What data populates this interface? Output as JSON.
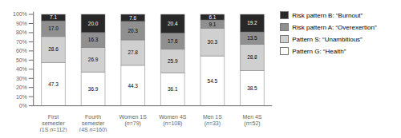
{
  "chart_data": {
    "type": "bar",
    "stacked": true,
    "data_labels": true,
    "grid": false,
    "legend": "right",
    "categories": [
      "First\nsemester\n(1S n=112)",
      "Fourth\nsemester\n(4S n=160)",
      "Women 1S\n(n=79)",
      "Women 4S\n(n=108)",
      "Men 1S\n(n=33)",
      "Men 4S\n(n=52)"
    ],
    "series": [
      {
        "name": "Pattern G: “Health”",
        "color": "#ffffff",
        "values": [
          47.3,
          36.9,
          44.3,
          36.1,
          54.5,
          38.5
        ],
        "value_labels": [
          "47.3",
          "36.9",
          "44.3",
          "36.1",
          "54.5",
          "38.5"
        ]
      },
      {
        "name": "Pattern S: “Unambitious”",
        "color": "#d0d0d0",
        "values": [
          28.6,
          26.9,
          27.8,
          25.9,
          30.3,
          28.8
        ],
        "value_labels": [
          "28.6",
          "26.9",
          "27.8",
          "25.9",
          "30.3",
          "28.8"
        ]
      },
      {
        "name": "Risk pattern A: “Overexertion”",
        "color": "#909090",
        "values": [
          17.0,
          16.3,
          20.3,
          17.6,
          9.1,
          13.5
        ],
        "value_labels": [
          "17.0",
          "16.3",
          "20.3",
          "17.6",
          "9.1",
          "13.5"
        ]
      },
      {
        "name": "Risk pattern B: “Burnout”",
        "color": "#282828",
        "values": [
          7.1,
          20.0,
          7.6,
          20.4,
          6.1,
          19.2
        ],
        "value_labels": [
          "7.1",
          "20.0",
          "7.6",
          "20.4",
          "6.1",
          "19.2"
        ]
      }
    ],
    "ylim": [
      0,
      103
    ],
    "yticks": [
      {
        "value": 0,
        "label": "0%"
      },
      {
        "value": 10,
        "label": "10%"
      },
      {
        "value": 20,
        "label": "20%"
      },
      {
        "value": 30,
        "label": "30%"
      },
      {
        "value": 40,
        "label": "40%"
      },
      {
        "value": 50,
        "label": "50%"
      },
      {
        "value": 60,
        "label": "60%"
      },
      {
        "value": 70,
        "label": "70%"
      },
      {
        "value": 80,
        "label": "80%"
      },
      {
        "value": 90,
        "label": "90%"
      },
      {
        "value": 100,
        "label": "100%"
      }
    ]
  }
}
